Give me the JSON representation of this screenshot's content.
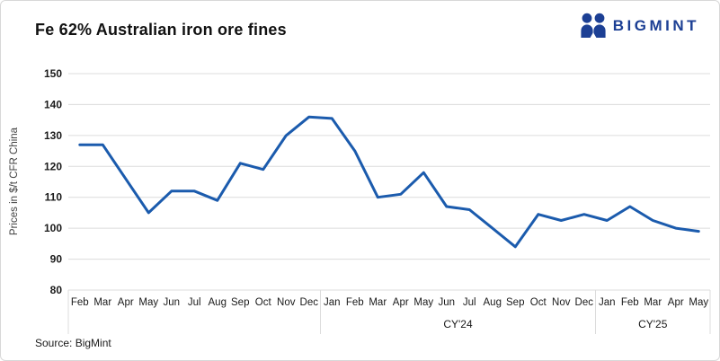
{
  "header": {
    "title": "Fe 62% Australian iron ore fines",
    "logo_text": "BIGMINT"
  },
  "footer": {
    "source": "Source: BigMint"
  },
  "colors": {
    "line": "#1b5bad",
    "logo": "#1c3f94",
    "grid": "#dcdcdc",
    "axis_text": "#1a1a1a",
    "ylabel_text": "#404040"
  },
  "chart_data": {
    "type": "line",
    "title": "Fe 62% Australian iron ore fines",
    "xlabel": "",
    "ylabel": "Prices in $/t CFR China",
    "ylim": [
      80,
      150
    ],
    "ytick_step": 10,
    "grid": "horizontal",
    "legend": "none",
    "categories": [
      "Feb",
      "Mar",
      "Apr",
      "May",
      "Jun",
      "Jul",
      "Aug",
      "Sep",
      "Oct",
      "Nov",
      "Dec",
      "Jan",
      "Feb",
      "Mar",
      "Apr",
      "May",
      "Jun",
      "Jul",
      "Aug",
      "Sep",
      "Oct",
      "Nov",
      "Dec",
      "Jan",
      "Feb",
      "Mar",
      "Apr",
      "May"
    ],
    "category_groups": [
      {
        "label": "",
        "months": 11
      },
      {
        "label": "CY'24",
        "months": 12
      },
      {
        "label": "CY'25",
        "months": 5
      }
    ],
    "series": [
      {
        "name": "Fe 62% Australian iron ore fines",
        "values": [
          127,
          127,
          116,
          105,
          112,
          112,
          109,
          121,
          119,
          130,
          136,
          135.5,
          125,
          110,
          111,
          118,
          107,
          106,
          100,
          94,
          104.5,
          102.5,
          104.5,
          102.5,
          107,
          102.5,
          100,
          99
        ]
      }
    ]
  }
}
